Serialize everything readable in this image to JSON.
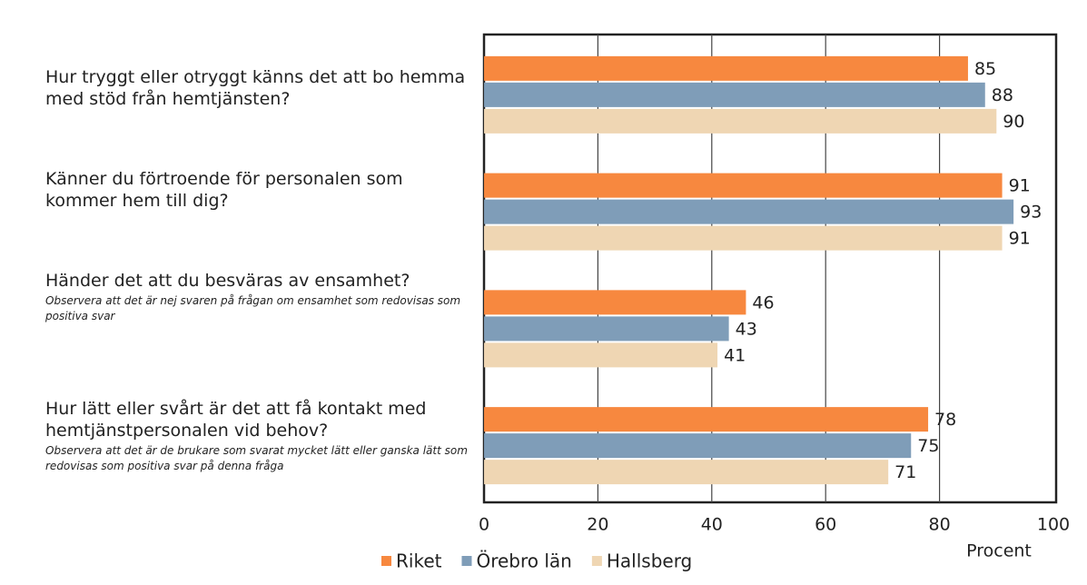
{
  "chart_data": {
    "type": "bar",
    "orientation": "horizontal",
    "categories": [
      "Hur tryggt eller otryggt känns det att bo hemma med stöd från hemtjänsten?",
      "Känner du förtroende för personalen som kommer hem till dig?",
      "Händer det att du besväras av ensamhet?",
      "Hur lätt eller svårt är det att få kontakt med hemtjänstpersonalen vid behov?"
    ],
    "category_notes": [
      null,
      null,
      "Observera att det är nej svaren på frågan om ensamhet som redovisas som positiva svar",
      "Observera att det är de brukare som svarat mycket lätt eller ganska lätt som redovisas som positiva svar på denna fråga"
    ],
    "series": [
      {
        "name": "Riket",
        "color": "#f7883f",
        "values": [
          85,
          91,
          46,
          78
        ]
      },
      {
        "name": "Örebro län",
        "color": "#7f9db8",
        "values": [
          88,
          93,
          43,
          75
        ]
      },
      {
        "name": "Hallsberg",
        "color": "#efd6b3",
        "values": [
          90,
          91,
          41,
          71
        ]
      }
    ],
    "xlabel": "Procent",
    "xlim": [
      0,
      100
    ],
    "xticks": [
      0,
      20,
      40,
      60,
      80,
      100
    ],
    "grid": true,
    "legend": "bottom"
  }
}
